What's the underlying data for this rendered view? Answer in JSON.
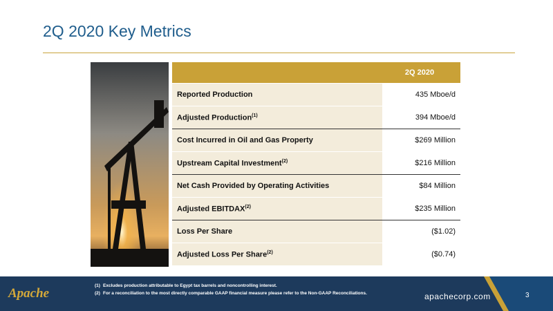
{
  "header": {
    "title": "2Q 2020 Key Metrics"
  },
  "table": {
    "column_header": "2Q 2020",
    "rows": [
      {
        "label": "Reported Production",
        "value": "435 Mboe/d"
      },
      {
        "label": "Adjusted Production",
        "note": "(1)",
        "value": "394 Mboe/d"
      },
      {
        "label": "Cost Incurred in Oil and Gas Property",
        "value": "$269 Million"
      },
      {
        "label": "Upstream Capital Investment",
        "note": "(2)",
        "value": "$216 Million"
      },
      {
        "label": "Net Cash Provided by Operating Activities",
        "value": "$84 Million"
      },
      {
        "label": "Adjusted EBITDAX",
        "note": "(2)",
        "value": "$235 Million"
      },
      {
        "label": "Loss Per Share",
        "value": "($1.02)"
      },
      {
        "label": "Adjusted Loss Per Share",
        "note": "(2)",
        "value": "($0.74)"
      }
    ]
  },
  "footnotes": [
    {
      "marker": "(1)",
      "text": "Excludes production attributable to Egypt tax barrels and noncontrolling interest."
    },
    {
      "marker": "(2)",
      "text": "For a reconciliation to the most directly comparable GAAP financial measure please refer to the Non-GAAP Reconciliations."
    }
  ],
  "footer": {
    "logo": "Apache",
    "website": "apachecorp.com",
    "page": "3"
  }
}
